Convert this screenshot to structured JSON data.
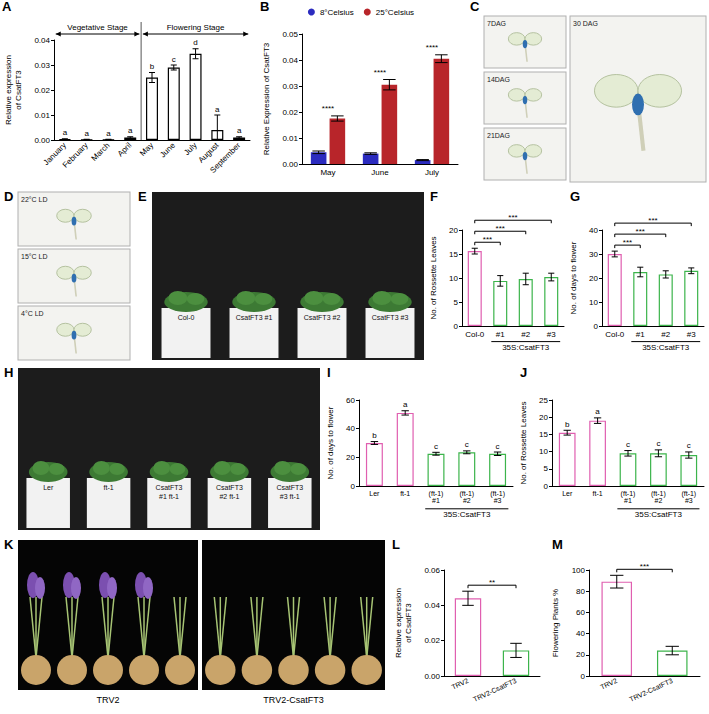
{
  "chart_data": [
    {
      "panel": "A",
      "type": "bar",
      "ylabel": "Relative expression of CsatFT3",
      "categories": [
        "January",
        "February",
        "March",
        "April",
        "May",
        "June",
        "July",
        "August",
        "September"
      ],
      "values": [
        0.0003,
        0.0002,
        0.0002,
        0.001,
        0.025,
        0.029,
        0.0345,
        0.004,
        0.001
      ],
      "error": [
        0.0002,
        0.0001,
        0.0001,
        0.0003,
        0.002,
        0.001,
        0.002,
        0.006,
        0.0003
      ],
      "letters": [
        "a",
        "a",
        "a",
        "a",
        "b",
        "c",
        "d",
        "a",
        "a"
      ],
      "color": "#000000",
      "ylim": [
        0,
        0.04
      ],
      "yticks": [
        {
          "value": 0,
          "label": "0.00"
        },
        0.01,
        0.02,
        0.03,
        0.04
      ],
      "grid": false,
      "annotations": [
        {
          "text": "Vegetative Stage",
          "from": "January",
          "to": "April"
        },
        {
          "text": "Flowering Stage",
          "from": "May",
          "to": "September"
        }
      ]
    },
    {
      "panel": "B",
      "type": "bar",
      "ylabel": "Relative Expression of CsatFT3",
      "categories": [
        "May",
        "June",
        "July"
      ],
      "series": [
        {
          "name": "8°Celsius",
          "color": "#2b2bbf",
          "values": [
            0.0045,
            0.004,
            0.0015
          ],
          "error": [
            0.0005,
            0.0003,
            0.0002
          ]
        },
        {
          "name": "25°Celsius",
          "color": "#b8252a",
          "values": [
            0.0175,
            0.0305,
            0.0405
          ],
          "error": [
            0.001,
            0.002,
            0.0015
          ]
        }
      ],
      "ylim": [
        0,
        0.05
      ],
      "yticks": [
        {
          "value": 0,
          "label": "0.00"
        },
        0.01,
        0.02,
        0.03,
        0.04,
        0.05
      ],
      "grid": false,
      "legend": "top",
      "significance": [
        {
          "from": "May",
          "to": "May",
          "label": "****"
        },
        {
          "from": "June",
          "to": "June",
          "label": "****"
        },
        {
          "from": "July",
          "to": "July",
          "label": "****"
        }
      ]
    },
    {
      "panel": "F",
      "type": "bar",
      "ylabel": "No. of Rossette Leaves",
      "categories": [
        "Col-0",
        "#1",
        "#2",
        "#3"
      ],
      "values": [
        15.6,
        9.4,
        9.8,
        10.2
      ],
      "error": [
        0.6,
        1.1,
        1.2,
        0.8
      ],
      "colors": [
        "#e05fb0",
        "#3cb44b",
        "#3cb44b",
        "#3cb44b"
      ],
      "ylim": [
        0,
        20
      ],
      "yticks": [
        0,
        5,
        10,
        15,
        20
      ],
      "grid": false,
      "group_label": {
        "text": "35S:CsatFT3",
        "from": "#1",
        "to": "#3"
      },
      "significance": [
        {
          "from": "Col-0",
          "to": "#1",
          "label": "***"
        },
        {
          "from": "Col-0",
          "to": "#2",
          "label": "***"
        },
        {
          "from": "Col-0",
          "to": "#3",
          "label": "***"
        }
      ]
    },
    {
      "panel": "G",
      "type": "bar",
      "ylabel": "No. of days to flower",
      "categories": [
        "Col-0",
        "#1",
        "#2",
        "#3"
      ],
      "values": [
        30,
        22.5,
        21.5,
        23
      ],
      "error": [
        1.2,
        2,
        1.5,
        1.2
      ],
      "colors": [
        "#e05fb0",
        "#3cb44b",
        "#3cb44b",
        "#3cb44b"
      ],
      "ylim": [
        0,
        40
      ],
      "yticks": [
        0,
        10,
        20,
        30,
        40
      ],
      "grid": false,
      "group_label": {
        "text": "35S:CsatFT3",
        "from": "#1",
        "to": "#3"
      },
      "significance": [
        {
          "from": "Col-0",
          "to": "#1",
          "label": "***"
        },
        {
          "from": "Col-0",
          "to": "#2",
          "label": "***"
        },
        {
          "from": "Col-0",
          "to": "#3",
          "label": "***"
        }
      ]
    },
    {
      "panel": "I",
      "type": "bar",
      "ylabel": "No. of days to flower",
      "categories": [
        "Ler",
        "ft-1",
        "(ft-1)\n#1",
        "(ft-1)\n#2",
        "(ft-1)\n#3"
      ],
      "values": [
        30,
        51,
        22.5,
        23.5,
        22.5
      ],
      "error": [
        1,
        1.5,
        1,
        1,
        1.2
      ],
      "letters": [
        "b",
        "a",
        "c",
        "c",
        "c"
      ],
      "colors": [
        "#e05fb0",
        "#e05fb0",
        "#3cb44b",
        "#3cb44b",
        "#3cb44b"
      ],
      "ylim": [
        0,
        60
      ],
      "yticks": [
        0,
        20,
        40,
        60
      ],
      "grid": false,
      "group_label": {
        "text": "35S:CsatFT3",
        "from": "(ft-1)\n#1",
        "to": "(ft-1)\n#3"
      }
    },
    {
      "panel": "J",
      "type": "bar",
      "ylabel": "No. of Rossette Leaves",
      "categories": [
        "Ler",
        "ft-1",
        "(ft-1)\n#1",
        "(ft-1)\n#2",
        "(ft-1)\n#3"
      ],
      "values": [
        15.5,
        19,
        9.5,
        9.5,
        9
      ],
      "error": [
        0.7,
        0.8,
        0.8,
        1,
        0.9
      ],
      "letters": [
        "b",
        "a",
        "c",
        "c",
        "c"
      ],
      "colors": [
        "#e05fb0",
        "#e05fb0",
        "#3cb44b",
        "#3cb44b",
        "#3cb44b"
      ],
      "ylim": [
        0,
        25
      ],
      "yticks": [
        0,
        5,
        10,
        15,
        20,
        25
      ],
      "grid": false,
      "group_label": {
        "text": "35S:CsatFT3",
        "from": "(ft-1)\n#1",
        "to": "(ft-1)\n#3"
      }
    },
    {
      "panel": "L",
      "type": "bar",
      "ylabel": "Relative expression of CsatFT3",
      "categories": [
        "TRV2",
        "TRV2-CsatFT3"
      ],
      "values": [
        0.044,
        0.0145
      ],
      "error": [
        0.004,
        0.004
      ],
      "colors": [
        "#e05fb0",
        "#3cb44b"
      ],
      "ylim": [
        0,
        0.06
      ],
      "yticks": [
        {
          "value": 0,
          "label": "0.00"
        },
        0.02,
        0.04,
        0.06
      ],
      "grid": false,
      "significance": [
        {
          "from": "TRV2",
          "to": "TRV2-CsatFT3",
          "label": "**"
        }
      ]
    },
    {
      "panel": "M",
      "type": "bar",
      "ylabel": "Flowering Plants %",
      "categories": [
        "TRV2",
        "TRV2-CsatFT3"
      ],
      "values": [
        89,
        24
      ],
      "error": [
        6,
        4
      ],
      "colors": [
        "#e05fb0",
        "#3cb44b"
      ],
      "ylim": [
        0,
        100
      ],
      "yticks": [
        0,
        20,
        40,
        60,
        80,
        100
      ],
      "grid": false,
      "significance": [
        {
          "from": "TRV2",
          "to": "TRV2-CsatFT3",
          "label": "***"
        }
      ]
    }
  ],
  "images": [
    {
      "panel": "C",
      "labels": [
        "7DAG",
        "14DAG",
        "21DAG",
        "30 DAG"
      ]
    },
    {
      "panel": "D",
      "labels": [
        "22°C LD",
        "15°C LD",
        "4°C LD"
      ]
    },
    {
      "panel": "E",
      "labels": [
        "Col-0",
        "CsatFT3 #1",
        "CsatFT3 #2",
        "CsatFT3 #3"
      ]
    },
    {
      "panel": "H",
      "labels": [
        "Ler",
        "ft-1",
        "CsatFT3 #1 ft-1",
        "CsatFT3 #2 ft-1",
        "CsatFT3 #3 ft-1"
      ]
    },
    {
      "panel": "K",
      "labels": [
        "TRV2",
        "TRV2-CsatFT3"
      ]
    }
  ]
}
